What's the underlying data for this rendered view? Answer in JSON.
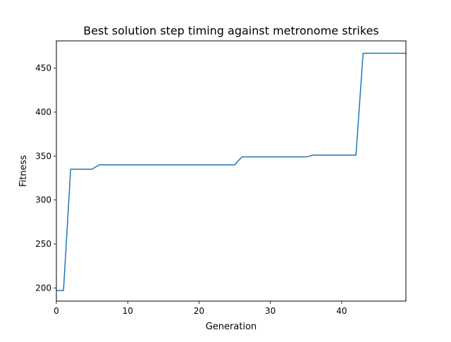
{
  "chart_data": {
    "type": "line",
    "title": "Best solution step timing against metronome strikes",
    "xlabel": "Generation",
    "ylabel": "Fitness",
    "xlim": [
      0,
      49
    ],
    "ylim": [
      185,
      481
    ],
    "x_ticks": [
      0,
      10,
      20,
      30,
      40
    ],
    "y_ticks": [
      200,
      250,
      300,
      350,
      400,
      450
    ],
    "grid": false,
    "legend": "none",
    "series": [
      {
        "color": "#1f77b4",
        "x": [
          0,
          1,
          2,
          3,
          4,
          5,
          6,
          7,
          8,
          9,
          10,
          11,
          12,
          13,
          14,
          15,
          16,
          17,
          18,
          19,
          20,
          21,
          22,
          23,
          24,
          25,
          26,
          27,
          28,
          29,
          30,
          31,
          32,
          33,
          34,
          35,
          36,
          37,
          38,
          39,
          40,
          41,
          42,
          43,
          44,
          45,
          46,
          47,
          48,
          49
        ],
        "y": [
          197,
          197,
          335,
          335,
          335,
          335,
          340,
          340,
          340,
          340,
          340,
          340,
          340,
          340,
          340,
          340,
          340,
          340,
          340,
          340,
          340,
          340,
          340,
          340,
          340,
          340,
          349,
          349,
          349,
          349,
          349,
          349,
          349,
          349,
          349,
          349,
          351,
          351,
          351,
          351,
          351,
          351,
          351,
          467,
          467,
          467,
          467,
          467,
          467,
          467
        ]
      }
    ]
  }
}
